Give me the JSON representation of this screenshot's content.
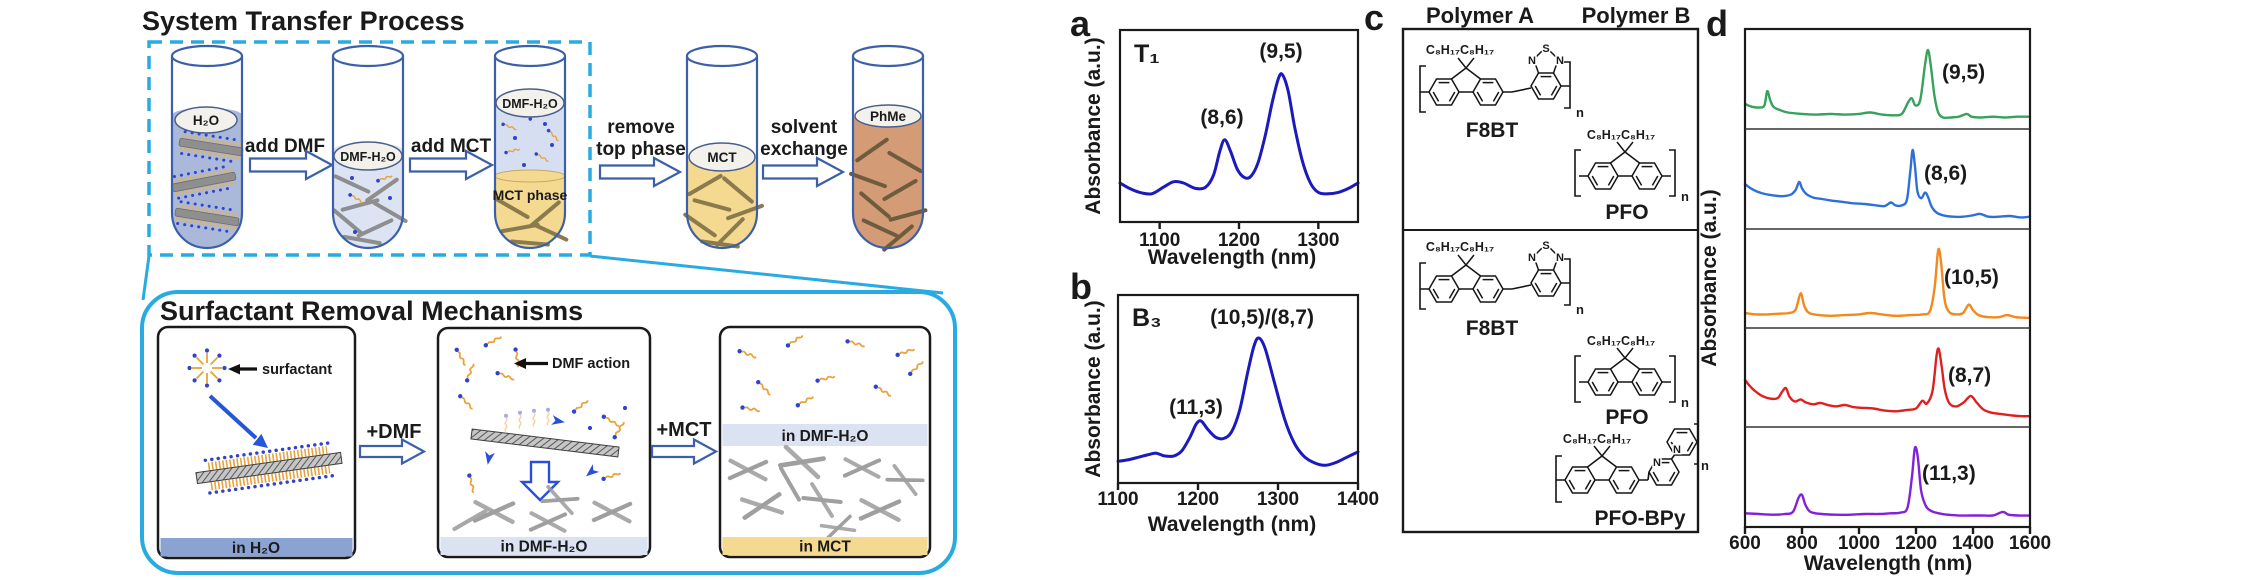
{
  "colors": {
    "accent_blue": "#1c4fc2",
    "cyan": "#29abe2",
    "tube_outline": "#3b5fa8",
    "water_liquid": "#aab9da",
    "dmf_water_liquid": "#dce4f4",
    "mct_yellow": "#f4da90",
    "phme_brown": "#d49c76",
    "band_water": "#8ba3d3",
    "band_dmf": "#dbe2f2",
    "polymer_blue": "#1c1cf0",
    "curve_navy": "#1b1abc",
    "series_green": "#36a25b",
    "series_blue": "#2e70d9",
    "series_orange": "#f3881c",
    "series_red": "#e01f1f",
    "series_purple": "#8122d9"
  },
  "transfer": {
    "title": "System Transfer Process",
    "tube1_label": "H₂O",
    "tube2_label": "DMF-H₂O",
    "tube3_top_label": "DMF-H₂O",
    "tube3_bottom_label": "MCT phase",
    "tube4_label": "MCT",
    "tube5_label": "PhMe",
    "step1": "add DMF",
    "step2": "add MCT",
    "step3_line1": "remove",
    "step3_line2": "top phase",
    "step4_line1": "solvent",
    "step4_line2": "exchange"
  },
  "mechanisms": {
    "title": "Surfactant Removal Mechanisms",
    "surfactant_label": "surfactant",
    "dmf_action_label": "DMF action",
    "step1": "+DMF",
    "step2": "+MCT",
    "band1": "in H₂O",
    "band2": "in DMF-H₂O",
    "band3_top": "in DMF-H₂O",
    "band3_bottom": "in MCT"
  },
  "panel_letters": {
    "a": "a",
    "b": "b",
    "c": "c",
    "d": "d"
  },
  "polymers": {
    "header_a": "Polymer A",
    "header_b": "Polymer B",
    "f8bt": "F8BT",
    "pfo": "PFO",
    "pfo_bpy": "PFO-BPy",
    "alkyl": "C₈H₁₇C₈H₁₇",
    "atom_s": "S",
    "atom_n": "N",
    "repeat_n": "n"
  },
  "chart_data": [
    {
      "id": "a",
      "type": "line",
      "inset_label": "T₁",
      "xlabel": "Wavelength (nm)",
      "ylabel": "Absorbance (a.u.)",
      "xlim": [
        1050,
        1350
      ],
      "xticks": [
        "1100",
        "1200",
        "1300"
      ],
      "color": "#1b1abc",
      "peaks": [
        {
          "label": "(8,6)",
          "wavelength_nm": 1180
        },
        {
          "label": "(9,5)",
          "wavelength_nm": 1252
        }
      ],
      "points": [
        [
          1050,
          0.2
        ],
        [
          1062,
          0.16
        ],
        [
          1075,
          0.13
        ],
        [
          1090,
          0.12
        ],
        [
          1105,
          0.17
        ],
        [
          1118,
          0.21
        ],
        [
          1130,
          0.2
        ],
        [
          1145,
          0.16
        ],
        [
          1158,
          0.17
        ],
        [
          1168,
          0.26
        ],
        [
          1176,
          0.44
        ],
        [
          1182,
          0.52
        ],
        [
          1189,
          0.44
        ],
        [
          1198,
          0.3
        ],
        [
          1207,
          0.24
        ],
        [
          1215,
          0.25
        ],
        [
          1224,
          0.35
        ],
        [
          1233,
          0.55
        ],
        [
          1242,
          0.8
        ],
        [
          1250,
          0.98
        ],
        [
          1255,
          1.0
        ],
        [
          1262,
          0.88
        ],
        [
          1270,
          0.62
        ],
        [
          1280,
          0.36
        ],
        [
          1290,
          0.2
        ],
        [
          1300,
          0.13
        ],
        [
          1312,
          0.12
        ],
        [
          1325,
          0.13
        ],
        [
          1338,
          0.16
        ],
        [
          1350,
          0.2
        ]
      ]
    },
    {
      "id": "b",
      "type": "line",
      "inset_label": "B₃",
      "xlabel": "Wavelength (nm)",
      "ylabel": "Absorbance (a.u.)",
      "xlim": [
        1100,
        1400
      ],
      "xticks": [
        "1100",
        "1200",
        "1300",
        "1400"
      ],
      "color": "#1b1abc",
      "peaks": [
        {
          "label": "(11,3)",
          "wavelength_nm": 1203
        },
        {
          "label": "(10,5)/(8,7)",
          "wavelength_nm": 1275
        }
      ],
      "points": [
        [
          1100,
          0.08
        ],
        [
          1112,
          0.09
        ],
        [
          1125,
          0.11
        ],
        [
          1138,
          0.13
        ],
        [
          1148,
          0.14
        ],
        [
          1158,
          0.12
        ],
        [
          1170,
          0.12
        ],
        [
          1180,
          0.16
        ],
        [
          1190,
          0.26
        ],
        [
          1198,
          0.36
        ],
        [
          1204,
          0.38
        ],
        [
          1212,
          0.32
        ],
        [
          1222,
          0.26
        ],
        [
          1232,
          0.25
        ],
        [
          1242,
          0.3
        ],
        [
          1252,
          0.46
        ],
        [
          1262,
          0.74
        ],
        [
          1270,
          0.94
        ],
        [
          1276,
          1.0
        ],
        [
          1284,
          0.92
        ],
        [
          1295,
          0.68
        ],
        [
          1308,
          0.4
        ],
        [
          1320,
          0.22
        ],
        [
          1332,
          0.12
        ],
        [
          1345,
          0.07
        ],
        [
          1358,
          0.05
        ],
        [
          1372,
          0.07
        ],
        [
          1386,
          0.11
        ],
        [
          1400,
          0.15
        ]
      ]
    },
    {
      "id": "d",
      "type": "line-stack",
      "xlabel": "Wavelength (nm)",
      "ylabel": "Absorbance (a.u.)",
      "xlim": [
        600,
        1600
      ],
      "xticks": [
        "600",
        "800",
        "1000",
        "1200",
        "1400",
        "1600"
      ],
      "series": [
        {
          "name": "(9,5)",
          "peak_nm": 1242,
          "color": "#36a25b",
          "points": [
            [
              600,
              0.24
            ],
            [
              625,
              0.2
            ],
            [
              650,
              0.19
            ],
            [
              668,
              0.22
            ],
            [
              678,
              0.42
            ],
            [
              688,
              0.3
            ],
            [
              700,
              0.2
            ],
            [
              725,
              0.15
            ],
            [
              750,
              0.12
            ],
            [
              800,
              0.1
            ],
            [
              850,
              0.09
            ],
            [
              900,
              0.1
            ],
            [
              950,
              0.09
            ],
            [
              1000,
              0.1
            ],
            [
              1040,
              0.12
            ],
            [
              1080,
              0.09
            ],
            [
              1120,
              0.08
            ],
            [
              1150,
              0.1
            ],
            [
              1172,
              0.26
            ],
            [
              1185,
              0.32
            ],
            [
              1198,
              0.22
            ],
            [
              1215,
              0.3
            ],
            [
              1232,
              0.8
            ],
            [
              1242,
              1.0
            ],
            [
              1252,
              0.78
            ],
            [
              1265,
              0.35
            ],
            [
              1278,
              0.12
            ],
            [
              1295,
              0.05
            ],
            [
              1320,
              0.05
            ],
            [
              1350,
              0.06
            ],
            [
              1378,
              0.1
            ],
            [
              1395,
              0.06
            ],
            [
              1430,
              0.05
            ],
            [
              1470,
              0.06
            ],
            [
              1510,
              0.05
            ],
            [
              1555,
              0.06
            ],
            [
              1600,
              0.06
            ]
          ]
        },
        {
          "name": "(8,6)",
          "peak_nm": 1188,
          "color": "#2e70d9",
          "points": [
            [
              600,
              0.52
            ],
            [
              620,
              0.46
            ],
            [
              645,
              0.41
            ],
            [
              670,
              0.38
            ],
            [
              700,
              0.36
            ],
            [
              730,
              0.35
            ],
            [
              760,
              0.37
            ],
            [
              778,
              0.44
            ],
            [
              790,
              0.55
            ],
            [
              800,
              0.46
            ],
            [
              815,
              0.38
            ],
            [
              840,
              0.33
            ],
            [
              870,
              0.31
            ],
            [
              900,
              0.29
            ],
            [
              940,
              0.27
            ],
            [
              980,
              0.25
            ],
            [
              1020,
              0.24
            ],
            [
              1060,
              0.22
            ],
            [
              1090,
              0.21
            ],
            [
              1112,
              0.26
            ],
            [
              1128,
              0.22
            ],
            [
              1150,
              0.22
            ],
            [
              1168,
              0.3
            ],
            [
              1180,
              0.7
            ],
            [
              1188,
              1.0
            ],
            [
              1196,
              0.78
            ],
            [
              1205,
              0.42
            ],
            [
              1218,
              0.32
            ],
            [
              1232,
              0.4
            ],
            [
              1242,
              0.34
            ],
            [
              1255,
              0.2
            ],
            [
              1272,
              0.12
            ],
            [
              1295,
              0.08
            ],
            [
              1330,
              0.06
            ],
            [
              1365,
              0.06
            ],
            [
              1400,
              0.08
            ],
            [
              1425,
              0.1
            ],
            [
              1455,
              0.06
            ],
            [
              1490,
              0.06
            ],
            [
              1530,
              0.07
            ],
            [
              1565,
              0.05
            ],
            [
              1600,
              0.06
            ]
          ]
        },
        {
          "name": "(10,5)",
          "peak_nm": 1278,
          "color": "#f3881c",
          "points": [
            [
              600,
              0.1
            ],
            [
              640,
              0.08
            ],
            [
              680,
              0.08
            ],
            [
              720,
              0.09
            ],
            [
              755,
              0.1
            ],
            [
              778,
              0.15
            ],
            [
              795,
              0.38
            ],
            [
              808,
              0.2
            ],
            [
              825,
              0.1
            ],
            [
              860,
              0.07
            ],
            [
              900,
              0.06
            ],
            [
              950,
              0.07
            ],
            [
              1000,
              0.08
            ],
            [
              1040,
              0.1
            ],
            [
              1080,
              0.08
            ],
            [
              1130,
              0.06
            ],
            [
              1180,
              0.07
            ],
            [
              1220,
              0.08
            ],
            [
              1248,
              0.12
            ],
            [
              1265,
              0.45
            ],
            [
              1278,
              1.0
            ],
            [
              1288,
              0.82
            ],
            [
              1300,
              0.3
            ],
            [
              1315,
              0.12
            ],
            [
              1340,
              0.08
            ],
            [
              1365,
              0.1
            ],
            [
              1385,
              0.22
            ],
            [
              1400,
              0.14
            ],
            [
              1420,
              0.07
            ],
            [
              1455,
              0.04
            ],
            [
              1490,
              0.04
            ],
            [
              1520,
              0.07
            ],
            [
              1550,
              0.04
            ],
            [
              1600,
              0.03
            ]
          ]
        },
        {
          "name": "(8,7)",
          "peak_nm": 1280,
          "color": "#e01f1f",
          "points": [
            [
              600,
              0.56
            ],
            [
              615,
              0.48
            ],
            [
              635,
              0.4
            ],
            [
              660,
              0.33
            ],
            [
              690,
              0.29
            ],
            [
              715,
              0.3
            ],
            [
              732,
              0.4
            ],
            [
              744,
              0.44
            ],
            [
              756,
              0.32
            ],
            [
              775,
              0.25
            ],
            [
              795,
              0.28
            ],
            [
              812,
              0.24
            ],
            [
              840,
              0.21
            ],
            [
              865,
              0.23
            ],
            [
              890,
              0.2
            ],
            [
              920,
              0.18
            ],
            [
              950,
              0.2
            ],
            [
              980,
              0.17
            ],
            [
              1010,
              0.16
            ],
            [
              1050,
              0.15
            ],
            [
              1090,
              0.12
            ],
            [
              1130,
              0.11
            ],
            [
              1170,
              0.13
            ],
            [
              1200,
              0.15
            ],
            [
              1222,
              0.26
            ],
            [
              1238,
              0.22
            ],
            [
              1258,
              0.4
            ],
            [
              1272,
              0.9
            ],
            [
              1280,
              1.0
            ],
            [
              1290,
              0.75
            ],
            [
              1302,
              0.4
            ],
            [
              1318,
              0.22
            ],
            [
              1342,
              0.18
            ],
            [
              1368,
              0.24
            ],
            [
              1392,
              0.33
            ],
            [
              1412,
              0.24
            ],
            [
              1435,
              0.14
            ],
            [
              1465,
              0.09
            ],
            [
              1500,
              0.07
            ],
            [
              1540,
              0.05
            ],
            [
              1570,
              0.04
            ],
            [
              1600,
              0.04
            ]
          ]
        },
        {
          "name": "(11,3)",
          "peak_nm": 1196,
          "color": "#8122d9",
          "points": [
            [
              600,
              0.08
            ],
            [
              650,
              0.07
            ],
            [
              700,
              0.06
            ],
            [
              740,
              0.07
            ],
            [
              768,
              0.1
            ],
            [
              788,
              0.3
            ],
            [
              800,
              0.34
            ],
            [
              812,
              0.2
            ],
            [
              830,
              0.1
            ],
            [
              870,
              0.07
            ],
            [
              920,
              0.06
            ],
            [
              970,
              0.06
            ],
            [
              1020,
              0.07
            ],
            [
              1070,
              0.07
            ],
            [
              1110,
              0.08
            ],
            [
              1145,
              0.09
            ],
            [
              1170,
              0.16
            ],
            [
              1186,
              0.6
            ],
            [
              1196,
              1.0
            ],
            [
              1206,
              0.88
            ],
            [
              1218,
              0.4
            ],
            [
              1235,
              0.18
            ],
            [
              1255,
              0.11
            ],
            [
              1280,
              0.08
            ],
            [
              1310,
              0.06
            ],
            [
              1350,
              0.05
            ],
            [
              1390,
              0.05
            ],
            [
              1430,
              0.05
            ],
            [
              1470,
              0.05
            ],
            [
              1505,
              0.1
            ],
            [
              1525,
              0.06
            ],
            [
              1560,
              0.05
            ],
            [
              1600,
              0.05
            ]
          ]
        }
      ]
    }
  ]
}
